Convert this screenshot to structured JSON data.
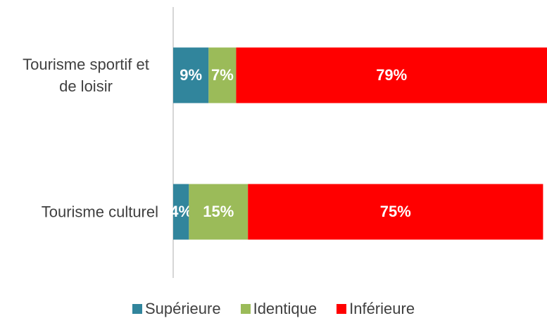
{
  "chart_data": {
    "type": "stacked-bar-horizontal",
    "categories": [
      "Tourisme sportif et de loisir",
      "Tourisme culturel"
    ],
    "series": [
      {
        "name": "Supérieure",
        "color": "#31859c",
        "values": [
          9,
          4
        ],
        "value_labels": [
          "9%",
          "4%"
        ]
      },
      {
        "name": "Identique",
        "color": "#9bbb59",
        "values": [
          7,
          15
        ],
        "value_labels": [
          "7%",
          "15%"
        ]
      },
      {
        "name": "Inférieure",
        "color": "#ff0000",
        "values": [
          79,
          75
        ],
        "value_labels": [
          "79%",
          "75%"
        ]
      }
    ],
    "xlim": [
      0,
      95
    ],
    "legend": "bottom"
  }
}
